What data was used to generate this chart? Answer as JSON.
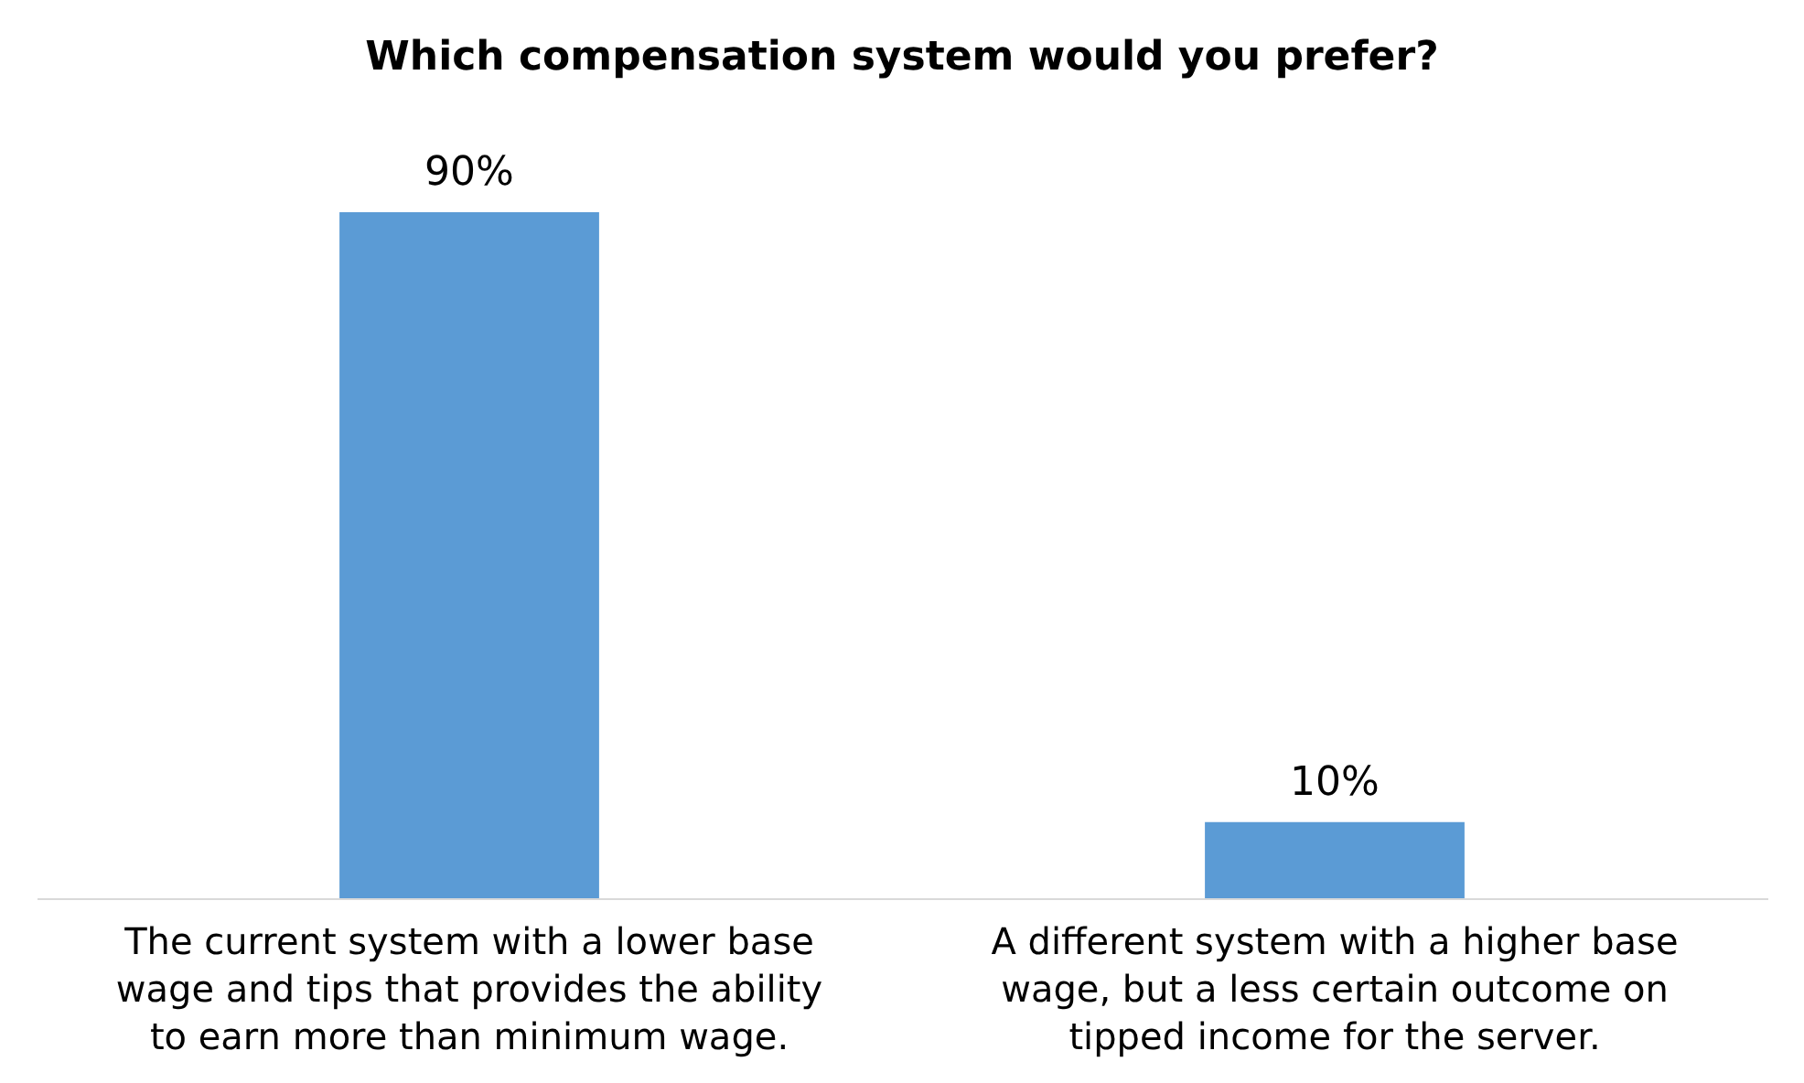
{
  "chart_data": {
    "type": "bar",
    "title": "Which compensation system would you prefer?",
    "categories": [
      "The current system with a lower base wage and tips that provides the ability to earn more than minimum wage.",
      "A different system with a higher base wage, but a less certain outcome on tipped income for the server."
    ],
    "values": [
      90,
      10
    ],
    "color": "#5b9bd5",
    "data_labels": true,
    "value_labels": [
      "90%",
      "10%"
    ]
  }
}
